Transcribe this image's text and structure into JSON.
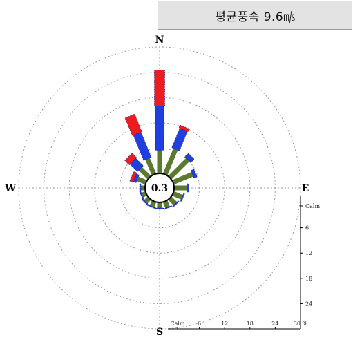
{
  "header": {
    "text": "평균풍속 9.6㎧"
  },
  "chart_data": {
    "type": "windrose",
    "directions": [
      "N",
      "NNE",
      "NE",
      "ENE",
      "E",
      "ESE",
      "SE",
      "SSE",
      "S",
      "SSW",
      "SW",
      "WSW",
      "W",
      "WNW",
      "NW",
      "NNW"
    ],
    "compass_labels": {
      "N": "N",
      "E": "E",
      "S": "S",
      "W": "W"
    },
    "calm_percent_label": "0.3",
    "radial_max": 30,
    "rings": [
      6,
      12,
      18,
      24,
      30
    ],
    "x_axis_ticks": [
      "Calm",
      "6",
      "12",
      "18",
      "24",
      "30 %"
    ],
    "y_axis_ticks": [
      "Calm",
      "6",
      "12",
      "18",
      "24"
    ],
    "speed_bins": [
      {
        "color": "#5a7a30"
      },
      {
        "color": "#1f3fe0"
      },
      {
        "color": "#ee1c1c"
      }
    ],
    "series": [
      {
        "direction": "N",
        "values": [
          5.5,
          10.5,
          8.5
        ]
      },
      {
        "direction": "NNE",
        "values": [
          6.5,
          5.0,
          0.7
        ]
      },
      {
        "direction": "NE",
        "values": [
          6.0,
          1.2,
          0.0
        ]
      },
      {
        "direction": "ENE",
        "values": [
          5.0,
          0.8,
          0.0
        ]
      },
      {
        "direction": "E",
        "values": [
          3.0,
          0.5,
          0.0
        ]
      },
      {
        "direction": "ESE",
        "values": [
          2.3,
          0.3,
          0.0
        ]
      },
      {
        "direction": "SE",
        "values": [
          1.8,
          0.3,
          0.0
        ]
      },
      {
        "direction": "SSE",
        "values": [
          1.5,
          0.2,
          0.0
        ]
      },
      {
        "direction": "S",
        "values": [
          1.3,
          0.2,
          0.0
        ]
      },
      {
        "direction": "SSW",
        "values": [
          1.3,
          0.2,
          0.0
        ]
      },
      {
        "direction": "SW",
        "values": [
          1.2,
          0.3,
          0.0
        ]
      },
      {
        "direction": "WSW",
        "values": [
          1.0,
          0.3,
          0.0
        ]
      },
      {
        "direction": "W",
        "values": [
          1.0,
          0.3,
          0.0
        ]
      },
      {
        "direction": "WNW",
        "values": [
          2.2,
          0.7,
          0.8
        ]
      },
      {
        "direction": "NW",
        "values": [
          3.0,
          2.5,
          1.5
        ]
      },
      {
        "direction": "NNW",
        "values": [
          4.0,
          6.5,
          4.5
        ]
      }
    ]
  }
}
